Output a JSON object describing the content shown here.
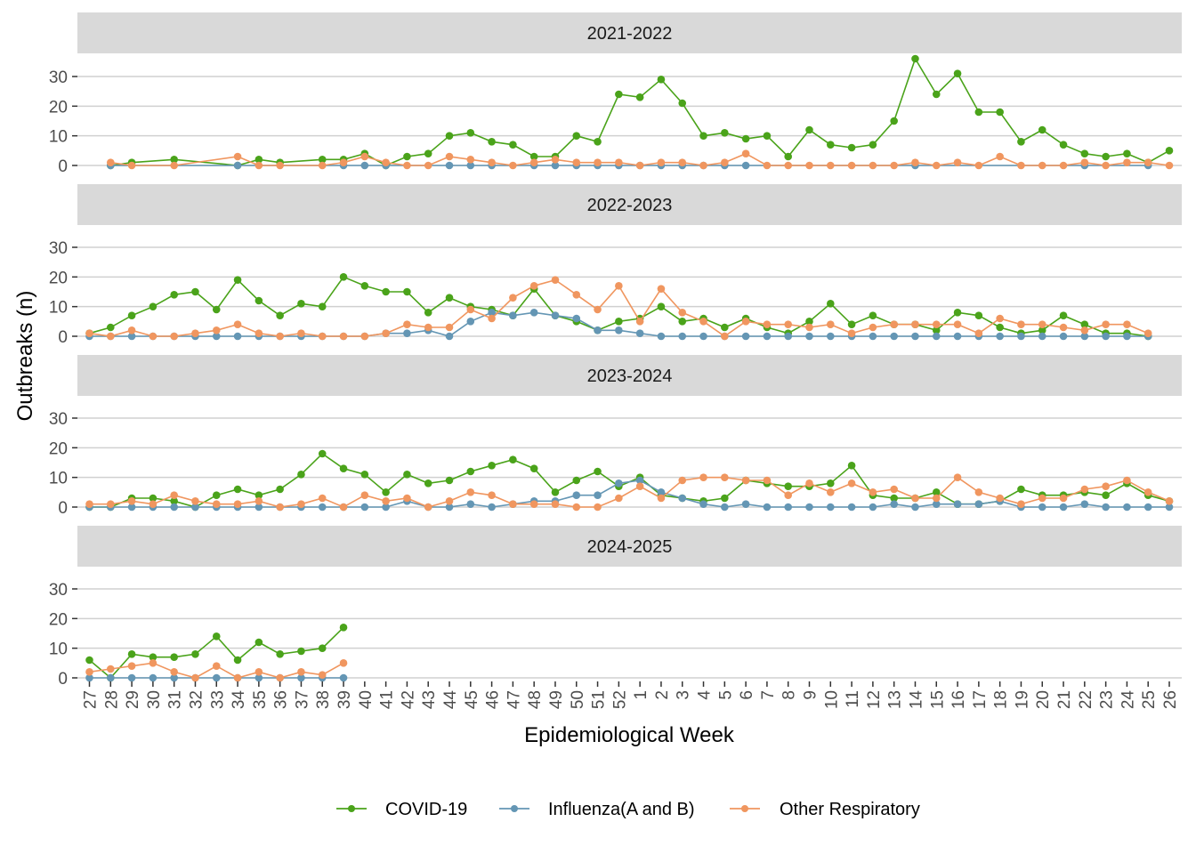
{
  "chart_data": {
    "type": "line",
    "xlabel": "Epidemiological Week",
    "ylabel": "Outbreaks (n)",
    "ylim": [
      0,
      37
    ],
    "yticks": [
      0,
      10,
      20,
      30
    ],
    "grid": true,
    "legend_position": "bottom",
    "x": [
      "27",
      "28",
      "29",
      "30",
      "31",
      "32",
      "33",
      "34",
      "35",
      "36",
      "37",
      "38",
      "39",
      "40",
      "41",
      "42",
      "43",
      "44",
      "45",
      "46",
      "47",
      "48",
      "49",
      "50",
      "51",
      "52",
      "1",
      "2",
      "3",
      "4",
      "5",
      "6",
      "7",
      "8",
      "9",
      "10",
      "11",
      "12",
      "13",
      "14",
      "15",
      "16",
      "17",
      "18",
      "19",
      "20",
      "21",
      "22",
      "23",
      "24",
      "25",
      "26"
    ],
    "series_styles": [
      {
        "name": "COVID-19",
        "color": "#4aa31a"
      },
      {
        "name": "Influenza(A and B)",
        "color": "#6496b4"
      },
      {
        "name": "Other Respiratory",
        "color": "#f0965f"
      }
    ],
    "panels": [
      {
        "title": "2021-2022",
        "series": [
          {
            "name": "COVID-19",
            "values": [
              null,
              0,
              1,
              null,
              2,
              null,
              null,
              0,
              2,
              1,
              null,
              2,
              2,
              4,
              0,
              3,
              4,
              10,
              11,
              8,
              7,
              3,
              3,
              10,
              8,
              24,
              23,
              29,
              21,
              10,
              11,
              9,
              10,
              3,
              12,
              7,
              6,
              7,
              15,
              36,
              24,
              31,
              18,
              18,
              8,
              12,
              7,
              4,
              3,
              4,
              1,
              5
            ]
          },
          {
            "name": "Influenza(A and B)",
            "values": [
              null,
              0,
              null,
              null,
              null,
              null,
              null,
              0,
              null,
              null,
              null,
              null,
              0,
              0,
              0,
              null,
              null,
              0,
              0,
              0,
              null,
              0,
              0,
              0,
              0,
              0,
              0,
              0,
              0,
              0,
              0,
              0,
              null,
              null,
              null,
              null,
              null,
              null,
              null,
              0,
              null,
              null,
              null,
              null,
              null,
              null,
              null,
              0,
              null,
              null,
              0,
              null
            ]
          },
          {
            "name": "Other Respiratory",
            "values": [
              null,
              1,
              0,
              null,
              0,
              null,
              null,
              3,
              0,
              0,
              null,
              0,
              1,
              3,
              1,
              0,
              0,
              3,
              2,
              1,
              0,
              1,
              2,
              1,
              1,
              1,
              0,
              1,
              1,
              0,
              1,
              4,
              0,
              0,
              0,
              0,
              0,
              0,
              0,
              1,
              0,
              1,
              0,
              3,
              0,
              0,
              0,
              1,
              0,
              1,
              1,
              0
            ]
          }
        ]
      },
      {
        "title": "2022-2023",
        "series": [
          {
            "name": "COVID-19",
            "values": [
              1,
              3,
              7,
              10,
              14,
              15,
              9,
              19,
              12,
              7,
              11,
              10,
              20,
              17,
              15,
              15,
              8,
              13,
              10,
              9,
              7,
              16,
              7,
              5,
              2,
              5,
              6,
              10,
              5,
              6,
              3,
              6,
              3,
              1,
              5,
              11,
              4,
              7,
              4,
              4,
              2,
              8,
              7,
              3,
              1,
              2,
              7,
              4,
              1,
              1,
              0,
              null
            ]
          },
          {
            "name": "Influenza(A and B)",
            "values": [
              0,
              0,
              0,
              0,
              0,
              0,
              0,
              0,
              0,
              0,
              0,
              0,
              0,
              0,
              1,
              1,
              2,
              0,
              5,
              8,
              7,
              8,
              7,
              6,
              2,
              2,
              1,
              0,
              0,
              0,
              0,
              0,
              0,
              0,
              0,
              0,
              0,
              0,
              0,
              0,
              0,
              0,
              0,
              0,
              0,
              0,
              0,
              0,
              0,
              0,
              0,
              null
            ]
          },
          {
            "name": "Other Respiratory",
            "values": [
              1,
              0,
              2,
              0,
              0,
              1,
              2,
              4,
              1,
              0,
              1,
              0,
              0,
              0,
              1,
              4,
              3,
              3,
              9,
              6,
              13,
              17,
              19,
              14,
              9,
              17,
              5,
              16,
              8,
              5,
              0,
              5,
              4,
              4,
              3,
              4,
              1,
              3,
              4,
              4,
              4,
              4,
              1,
              6,
              4,
              4,
              3,
              2,
              4,
              4,
              1,
              null
            ]
          }
        ]
      },
      {
        "title": "2023-2024",
        "series": [
          {
            "name": "COVID-19",
            "values": [
              0,
              0,
              3,
              3,
              2,
              0,
              4,
              6,
              4,
              6,
              11,
              18,
              13,
              11,
              5,
              11,
              8,
              9,
              12,
              14,
              16,
              13,
              5,
              9,
              12,
              7,
              10,
              4,
              3,
              2,
              3,
              9,
              8,
              7,
              7,
              8,
              14,
              4,
              3,
              3,
              5,
              1,
              1,
              2,
              6,
              4,
              4,
              5,
              4,
              8,
              4,
              2
            ]
          },
          {
            "name": "Influenza(A and B)",
            "values": [
              0,
              0,
              0,
              0,
              0,
              0,
              0,
              0,
              0,
              0,
              0,
              0,
              0,
              0,
              0,
              2,
              0,
              0,
              1,
              0,
              1,
              2,
              2,
              4,
              4,
              8,
              9,
              5,
              3,
              1,
              0,
              1,
              0,
              0,
              0,
              0,
              0,
              0,
              1,
              0,
              1,
              1,
              1,
              2,
              0,
              0,
              0,
              1,
              0,
              0,
              0,
              0
            ]
          },
          {
            "name": "Other Respiratory",
            "values": [
              1,
              1,
              2,
              1,
              4,
              2,
              1,
              1,
              2,
              0,
              1,
              3,
              0,
              4,
              2,
              3,
              0,
              2,
              5,
              4,
              1,
              1,
              1,
              0,
              0,
              3,
              7,
              3,
              9,
              10,
              10,
              9,
              9,
              4,
              8,
              5,
              8,
              5,
              6,
              3,
              3,
              10,
              5,
              3,
              1,
              3,
              3,
              6,
              7,
              9,
              5,
              2
            ]
          }
        ]
      },
      {
        "title": "2024-2025",
        "series": [
          {
            "name": "COVID-19",
            "values": [
              6,
              0,
              8,
              7,
              7,
              8,
              14,
              6,
              12,
              8,
              9,
              10,
              17,
              null,
              null,
              null,
              null,
              null,
              null,
              null,
              null,
              null,
              null,
              null,
              null,
              null,
              null,
              null,
              null,
              null,
              null,
              null,
              null,
              null,
              null,
              null,
              null,
              null,
              null,
              null,
              null,
              null,
              null,
              null,
              null,
              null,
              null,
              null,
              null,
              null,
              null,
              null
            ]
          },
          {
            "name": "Influenza(A and B)",
            "values": [
              0,
              0,
              0,
              0,
              0,
              0,
              0,
              0,
              0,
              0,
              0,
              0,
              0,
              null,
              null,
              null,
              null,
              null,
              null,
              null,
              null,
              null,
              null,
              null,
              null,
              null,
              null,
              null,
              null,
              null,
              null,
              null,
              null,
              null,
              null,
              null,
              null,
              null,
              null,
              null,
              null,
              null,
              null,
              null,
              null,
              null,
              null,
              null,
              null,
              null,
              null,
              null
            ]
          },
          {
            "name": "Other Respiratory",
            "values": [
              2,
              3,
              4,
              5,
              2,
              0,
              4,
              0,
              2,
              0,
              2,
              1,
              5,
              null,
              null,
              null,
              null,
              null,
              null,
              null,
              null,
              null,
              null,
              null,
              null,
              null,
              null,
              null,
              null,
              null,
              null,
              null,
              null,
              null,
              null,
              null,
              null,
              null,
              null,
              null,
              null,
              null,
              null,
              null,
              null,
              null,
              null,
              null,
              null,
              null,
              null,
              null
            ]
          }
        ]
      }
    ]
  }
}
